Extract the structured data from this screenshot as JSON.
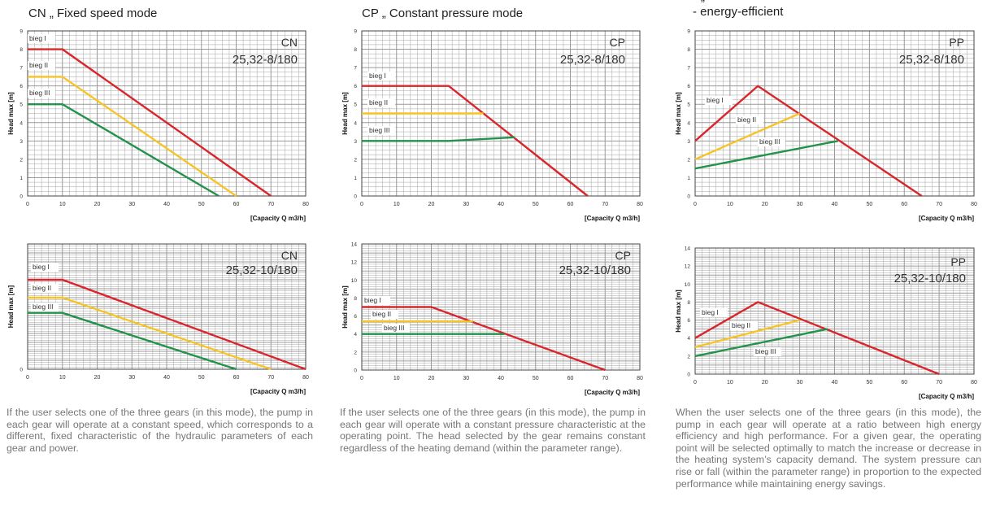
{
  "columns": [
    {
      "title": "CN „ Fixed speed mode",
      "subtitle": "",
      "description": "If the user selects one of the three gears (in this mode), the pump in each gear will operate at a constant speed, which corresponds to a different, fixed characteristic of the hydraulic parameters of each gear and power."
    },
    {
      "title": "CP „ Constant pressure mode",
      "subtitle": "",
      "description": "If the user selects one of the three gears (in this mode), the pump in each gear will operate with a constant pressure characteristic at the operating point. The head selected by the gear remains constant regardless of the heating demand (within the parameter range)."
    },
    {
      "title": "„",
      "subtitle": "- energy-efficient",
      "description": "When the user selects one of the three gears (in this mode), the pump in each gear will operate at a ratio between high energy efficiency and high performance. For a given gear, the operating point will be selected optimally to match the increase or decrease in the heating system’s capacity demand. The system pressure can rise or fall (within the parameter range) in proportion to the expected performance while maintaining energy savings."
    }
  ],
  "colors": {
    "red": "#d9262c",
    "yellow": "#f7c427",
    "green": "#23924a",
    "grid": "#9a9a9a",
    "axis": "#444444"
  },
  "chart_data": [
    {
      "type": "line",
      "mode": "CN",
      "model": "25,32-8/180",
      "xlabel": "[Capacity Q m3/h]",
      "ylabel": "Head max [m]",
      "xlim": [
        0,
        80
      ],
      "ylim": [
        0,
        9
      ],
      "x_ticks": [
        0,
        10,
        20,
        30,
        40,
        50,
        60,
        70,
        80
      ],
      "y_ticks": [
        0,
        1,
        2,
        3,
        4,
        5,
        6,
        7,
        8,
        9
      ],
      "series": [
        {
          "name": "bieg I",
          "color": "red",
          "points": [
            [
              0,
              8
            ],
            [
              10,
              8
            ],
            [
              70,
              0
            ]
          ]
        },
        {
          "name": "bieg II",
          "color": "yellow",
          "points": [
            [
              0,
              6.5
            ],
            [
              10,
              6.5
            ],
            [
              60,
              0
            ]
          ]
        },
        {
          "name": "bieg III",
          "color": "green",
          "points": [
            [
              0,
              5
            ],
            [
              10,
              5
            ],
            [
              55,
              0
            ]
          ]
        }
      ]
    },
    {
      "type": "line",
      "mode": "CP",
      "model": "25,32-8/180",
      "xlabel": "[Capacity Q m3/h]",
      "ylabel": "Head max [m]",
      "xlim": [
        0,
        80
      ],
      "ylim": [
        0,
        9
      ],
      "x_ticks": [
        0,
        10,
        20,
        30,
        40,
        50,
        60,
        70,
        80
      ],
      "y_ticks": [
        0,
        1,
        2,
        3,
        4,
        5,
        6,
        7,
        8,
        9
      ],
      "series": [
        {
          "name": "bieg I",
          "color": "red",
          "points": [
            [
              0,
              6
            ],
            [
              25,
              6
            ],
            [
              65,
              0
            ]
          ]
        },
        {
          "name": "bieg II",
          "color": "yellow",
          "points": [
            [
              0,
              4.5
            ],
            [
              25,
              4.5
            ],
            [
              35,
              4.5
            ]
          ]
        },
        {
          "name": "bieg III",
          "color": "green",
          "points": [
            [
              0,
              3
            ],
            [
              25,
              3
            ],
            [
              44,
              3.2
            ]
          ]
        }
      ]
    },
    {
      "type": "line",
      "mode": "PP",
      "model": "25,32-8/180",
      "xlabel": "[Capacity Q m3/h]",
      "ylabel": "Head max [m]",
      "xlim": [
        0,
        80
      ],
      "ylim": [
        0,
        9
      ],
      "x_ticks": [
        0,
        10,
        20,
        30,
        40,
        50,
        60,
        70,
        80
      ],
      "y_ticks": [
        0,
        1,
        2,
        3,
        4,
        5,
        6,
        7,
        8,
        9
      ],
      "series": [
        {
          "name": "bieg I",
          "color": "red",
          "points": [
            [
              0,
              3
            ],
            [
              18,
              6
            ],
            [
              65,
              0
            ]
          ]
        },
        {
          "name": "bieg II",
          "color": "yellow",
          "points": [
            [
              0,
              2
            ],
            [
              30,
              4.5
            ]
          ]
        },
        {
          "name": "bieg III",
          "color": "green",
          "points": [
            [
              0,
              1.5
            ],
            [
              41,
              3
            ]
          ]
        }
      ]
    },
    {
      "type": "line",
      "mode": "CN",
      "model": "25,32-10/180",
      "xlabel": "[Capacity Q m3/h]",
      "ylabel": "Head max [m]",
      "xlim": [
        0,
        80
      ],
      "ylim": [
        0,
        14
      ],
      "x_ticks": [
        0,
        10,
        20,
        30,
        40,
        50,
        60,
        70,
        80
      ],
      "y_ticks": [
        0
      ],
      "series": [
        {
          "name": "bieg I",
          "color": "red",
          "points": [
            [
              0,
              10
            ],
            [
              10,
              10
            ],
            [
              80,
              0
            ]
          ]
        },
        {
          "name": "bieg II",
          "color": "yellow",
          "points": [
            [
              0,
              8
            ],
            [
              10,
              8
            ],
            [
              70,
              0
            ]
          ]
        },
        {
          "name": "bieg III",
          "color": "green",
          "points": [
            [
              0,
              6.3
            ],
            [
              10,
              6.3
            ],
            [
              60,
              0
            ]
          ]
        }
      ]
    },
    {
      "type": "line",
      "mode": "CP",
      "model": "25,32-10/180",
      "xlabel": "[Capacity Q m3/h]",
      "ylabel": "Head max [m]",
      "xlim": [
        0,
        80
      ],
      "ylim": [
        0,
        14
      ],
      "x_ticks": [
        0,
        10,
        20,
        30,
        40,
        50,
        60,
        70,
        80
      ],
      "y_ticks": [
        0,
        2,
        4,
        6,
        8,
        10,
        12,
        14
      ],
      "series": [
        {
          "name": "bieg I",
          "color": "red",
          "points": [
            [
              0,
              7
            ],
            [
              20,
              7
            ],
            [
              70,
              0
            ]
          ]
        },
        {
          "name": "bieg II",
          "color": "yellow",
          "points": [
            [
              0,
              5.4
            ],
            [
              32,
              5.4
            ]
          ]
        },
        {
          "name": "bieg III",
          "color": "green",
          "points": [
            [
              0,
              4
            ],
            [
              41,
              4
            ]
          ]
        }
      ]
    },
    {
      "type": "line",
      "mode": "PP",
      "model": "25,32-10/180",
      "xlabel": "[Capacity Q m3/h]",
      "ylabel": "Head max [m]",
      "xlim": [
        0,
        80
      ],
      "ylim": [
        0,
        14
      ],
      "x_ticks": [
        0,
        10,
        20,
        30,
        40,
        50,
        60,
        70,
        80
      ],
      "y_ticks": [
        0,
        2,
        4,
        6,
        8,
        10,
        12,
        14
      ],
      "series": [
        {
          "name": "bieg I",
          "color": "red",
          "points": [
            [
              0,
              4
            ],
            [
              18,
              8
            ],
            [
              70,
              0
            ]
          ]
        },
        {
          "name": "bieg II",
          "color": "yellow",
          "points": [
            [
              0,
              3
            ],
            [
              30,
              6
            ]
          ]
        },
        {
          "name": "bieg III",
          "color": "green",
          "points": [
            [
              0,
              2
            ],
            [
              38,
              5
            ]
          ]
        }
      ]
    }
  ]
}
